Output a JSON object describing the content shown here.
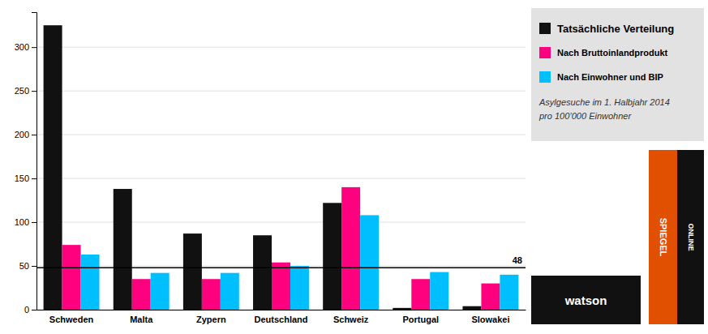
{
  "chart_data": {
    "type": "bar",
    "categories": [
      "Schweden",
      "Malta",
      "Zypern",
      "Deutschland",
      "Schweiz",
      "Portugal",
      "Slowakei"
    ],
    "series": [
      {
        "name": "Tatsächliche Verteilung",
        "color": "#111111",
        "values": [
          325,
          138,
          87,
          85,
          122,
          2,
          4
        ]
      },
      {
        "name": "Nach Bruttoinlandprodukt",
        "color": "#FF007F",
        "values": [
          74,
          35,
          35,
          54,
          140,
          35,
          30
        ]
      },
      {
        "name": "Nach Einwohner und BIP",
        "color": "#00BFFF",
        "values": [
          63,
          42,
          42,
          50,
          108,
          43,
          40
        ]
      }
    ],
    "subtitle": [
      "Asylgesuche im 1. Halbjahr 2014",
      "pro 100’000 Einwohner"
    ],
    "annotations": [
      {
        "value": 48,
        "label": "48"
      },
      {
        "text": "watson"
      },
      {
        "text": "SPIEGEL"
      },
      {
        "text": "ONLINE"
      }
    ],
    "ylim": [
      0,
      340
    ],
    "yticks": [
      0,
      50,
      100,
      150,
      200,
      250,
      300
    ],
    "grid": true,
    "legend": "right"
  }
}
